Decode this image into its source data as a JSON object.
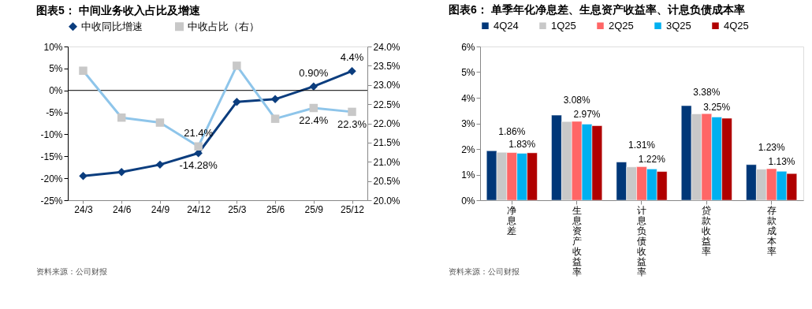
{
  "chart_data": [
    {
      "type": "line",
      "title": "图表5：  中间业务收入占比及增速",
      "categories": [
        "24/3",
        "24/6",
        "24/9",
        "24/12",
        "25/3",
        "25/6",
        "25/9",
        "25/12"
      ],
      "series": [
        {
          "name": "中收同比增速",
          "color": "#0b3d7e",
          "marker": "diamond",
          "values": [
            -19.5,
            -18.6,
            -16.9,
            -14.28,
            -2.6,
            -2.0,
            0.9,
            4.4
          ],
          "value_labels": [
            null,
            null,
            null,
            "-14.28%",
            null,
            null,
            "0.90%",
            "4.4%"
          ]
        },
        {
          "name": "中收占比（右）",
          "color": "#8ec5ea",
          "colors": [
            "#c8c8c8",
            "#c8c8c8",
            "#c8c8c8",
            "#c8c8c8",
            "#c8c8c8",
            "#c8c8c8",
            "#c8c8c8",
            "#c8c8c8"
          ],
          "marker": "square",
          "axis": "y2",
          "values": [
            23.37,
            22.15,
            22.02,
            21.4,
            23.5,
            22.12,
            22.4,
            22.3
          ],
          "value_labels": [
            null,
            null,
            null,
            "21.4%",
            null,
            null,
            "22.4%",
            "22.3%"
          ]
        }
      ],
      "ylim": [
        -25,
        10
      ],
      "yticks": [
        {
          "value": -25,
          "label": "-25%"
        },
        {
          "value": -20,
          "label": "-20%"
        },
        {
          "value": -15,
          "label": "-15%"
        },
        {
          "value": -10,
          "label": "-10%"
        },
        {
          "value": -5,
          "label": "-5%"
        },
        {
          "value": 0,
          "label": "0%"
        },
        {
          "value": 5,
          "label": "5%"
        },
        {
          "value": 10,
          "label": "10%"
        }
      ],
      "y2lim": [
        20,
        24
      ],
      "y2ticks": [
        {
          "value": 20,
          "label": "20.0%"
        },
        {
          "value": 20.5,
          "label": "20.5%"
        },
        {
          "value": 21,
          "label": "21.0%"
        },
        {
          "value": 21.5,
          "label": "21.5%"
        },
        {
          "value": 22,
          "label": "22.0%"
        },
        {
          "value": 22.5,
          "label": "22.5%"
        },
        {
          "value": 23,
          "label": "23.0%"
        },
        {
          "value": 23.5,
          "label": "23.5%"
        },
        {
          "value": 24,
          "label": "24.0%"
        }
      ],
      "ref_lines": [
        {
          "axis": "y",
          "value": 0,
          "color": "#000000"
        }
      ],
      "legend": "top",
      "grid": false,
      "line_style": "solid",
      "annotations": [
        "资料来源：公司财报"
      ]
    },
    {
      "type": "bar",
      "title": "图表6：  单季年化净息差、生息资产收益率、计息负债成本率",
      "categories": [
        "净息差",
        "生息资产收益率",
        "计息负债收益率",
        "贷款收益率",
        "存款成本率"
      ],
      "series": [
        {
          "name": "4Q24",
          "color": "#003778",
          "values": [
            1.93,
            3.32,
            1.49,
            3.69,
            1.39
          ]
        },
        {
          "name": "1Q25",
          "color": "#c8c8c8",
          "values": [
            1.87,
            3.07,
            1.3,
            3.37,
            1.21
          ]
        },
        {
          "name": "2Q25",
          "color": "#ff6666",
          "values": [
            1.86,
            3.08,
            1.31,
            3.38,
            1.23
          ],
          "value_labels": [
            "1.86%",
            "3.08%",
            "1.31%",
            "3.38%",
            "1.23%"
          ]
        },
        {
          "name": "3Q25",
          "color": "#00b0f0",
          "values": [
            1.83,
            2.97,
            1.22,
            3.25,
            1.13
          ],
          "value_labels": [
            "1.83%",
            "2.97%",
            "1.22%",
            "3.25%",
            "1.13%"
          ]
        },
        {
          "name": "4Q25",
          "color": "#b00000",
          "values": [
            1.85,
            2.91,
            1.12,
            3.2,
            1.04
          ]
        }
      ],
      "ylim": [
        0,
        6
      ],
      "yticks": [
        {
          "value": 0,
          "label": "0%"
        },
        {
          "value": 1,
          "label": "1%"
        },
        {
          "value": 2,
          "label": "2%"
        },
        {
          "value": 3,
          "label": "3%"
        },
        {
          "value": 4,
          "label": "4%"
        },
        {
          "value": 5,
          "label": "5%"
        },
        {
          "value": 6,
          "label": "6%"
        }
      ],
      "legend": "top",
      "grid": false,
      "annotations": [
        "资料来源：公司财报"
      ]
    }
  ]
}
